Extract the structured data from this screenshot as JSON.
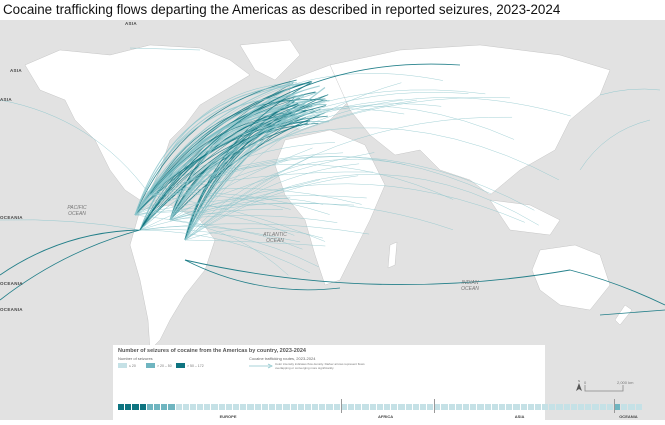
{
  "title": "Cocaine trafficking flows departing the Americas as described in reported seizures, 2023-2024",
  "map": {
    "edge_labels": [
      "ASIA",
      "ASIA",
      "ASIA",
      "OCEANIA",
      "OCEANIA",
      "OCEANIA"
    ],
    "oceans": {
      "pacific": "PACIFIC OCEAN",
      "atlantic": "ATLANTIC OCEAN",
      "indian": "INDIAN OCEAN"
    },
    "colors": {
      "land": "#ffffff",
      "sea": "#e2e2e2",
      "flow_dark": "#0e7480",
      "flow_light": "#8cc5cc",
      "border": "#aaaaaa"
    }
  },
  "legend": {
    "title": "Number of seizures of cocaine from the Americas by country, 2023-2024",
    "seizures_label": "Number of seizures",
    "classes": [
      {
        "label": "≤ 20",
        "color": "#c5e1e6"
      },
      {
        "label": "> 20 – 50",
        "color": "#6fb5c0"
      },
      {
        "label": "> 50 – 172",
        "color": "#0e7480"
      }
    ],
    "routes_label": "Cocaine trafficking routes, 2023-2024",
    "routes_note": "Color intensity indicates flow density. Darker arrows represent flows overlapping or converging more significantly.",
    "regions": [
      {
        "name": "EUROPE",
        "levels": [
          3,
          3,
          3,
          3,
          2,
          2,
          2,
          2,
          1,
          1,
          1,
          1,
          1,
          1,
          1,
          1,
          1,
          1,
          1,
          1,
          1,
          1,
          1,
          1,
          1,
          1,
          1,
          1,
          1,
          1,
          1
        ]
      },
      {
        "name": "AFRICA",
        "levels": [
          1,
          1,
          1,
          1,
          1,
          1,
          1,
          1,
          1,
          1,
          1,
          1,
          1
        ]
      },
      {
        "name": "ASIA",
        "levels": [
          1,
          1,
          1,
          1,
          1,
          1,
          1,
          1,
          1,
          1,
          1,
          1,
          1,
          1,
          1,
          1,
          1,
          1,
          1,
          1,
          1,
          1,
          1,
          1,
          1
        ]
      },
      {
        "name": "OCEANIA",
        "levels": [
          2,
          1,
          1,
          1
        ]
      }
    ]
  },
  "scale": {
    "zero": "0",
    "max": "2,000 km",
    "north": "N"
  }
}
